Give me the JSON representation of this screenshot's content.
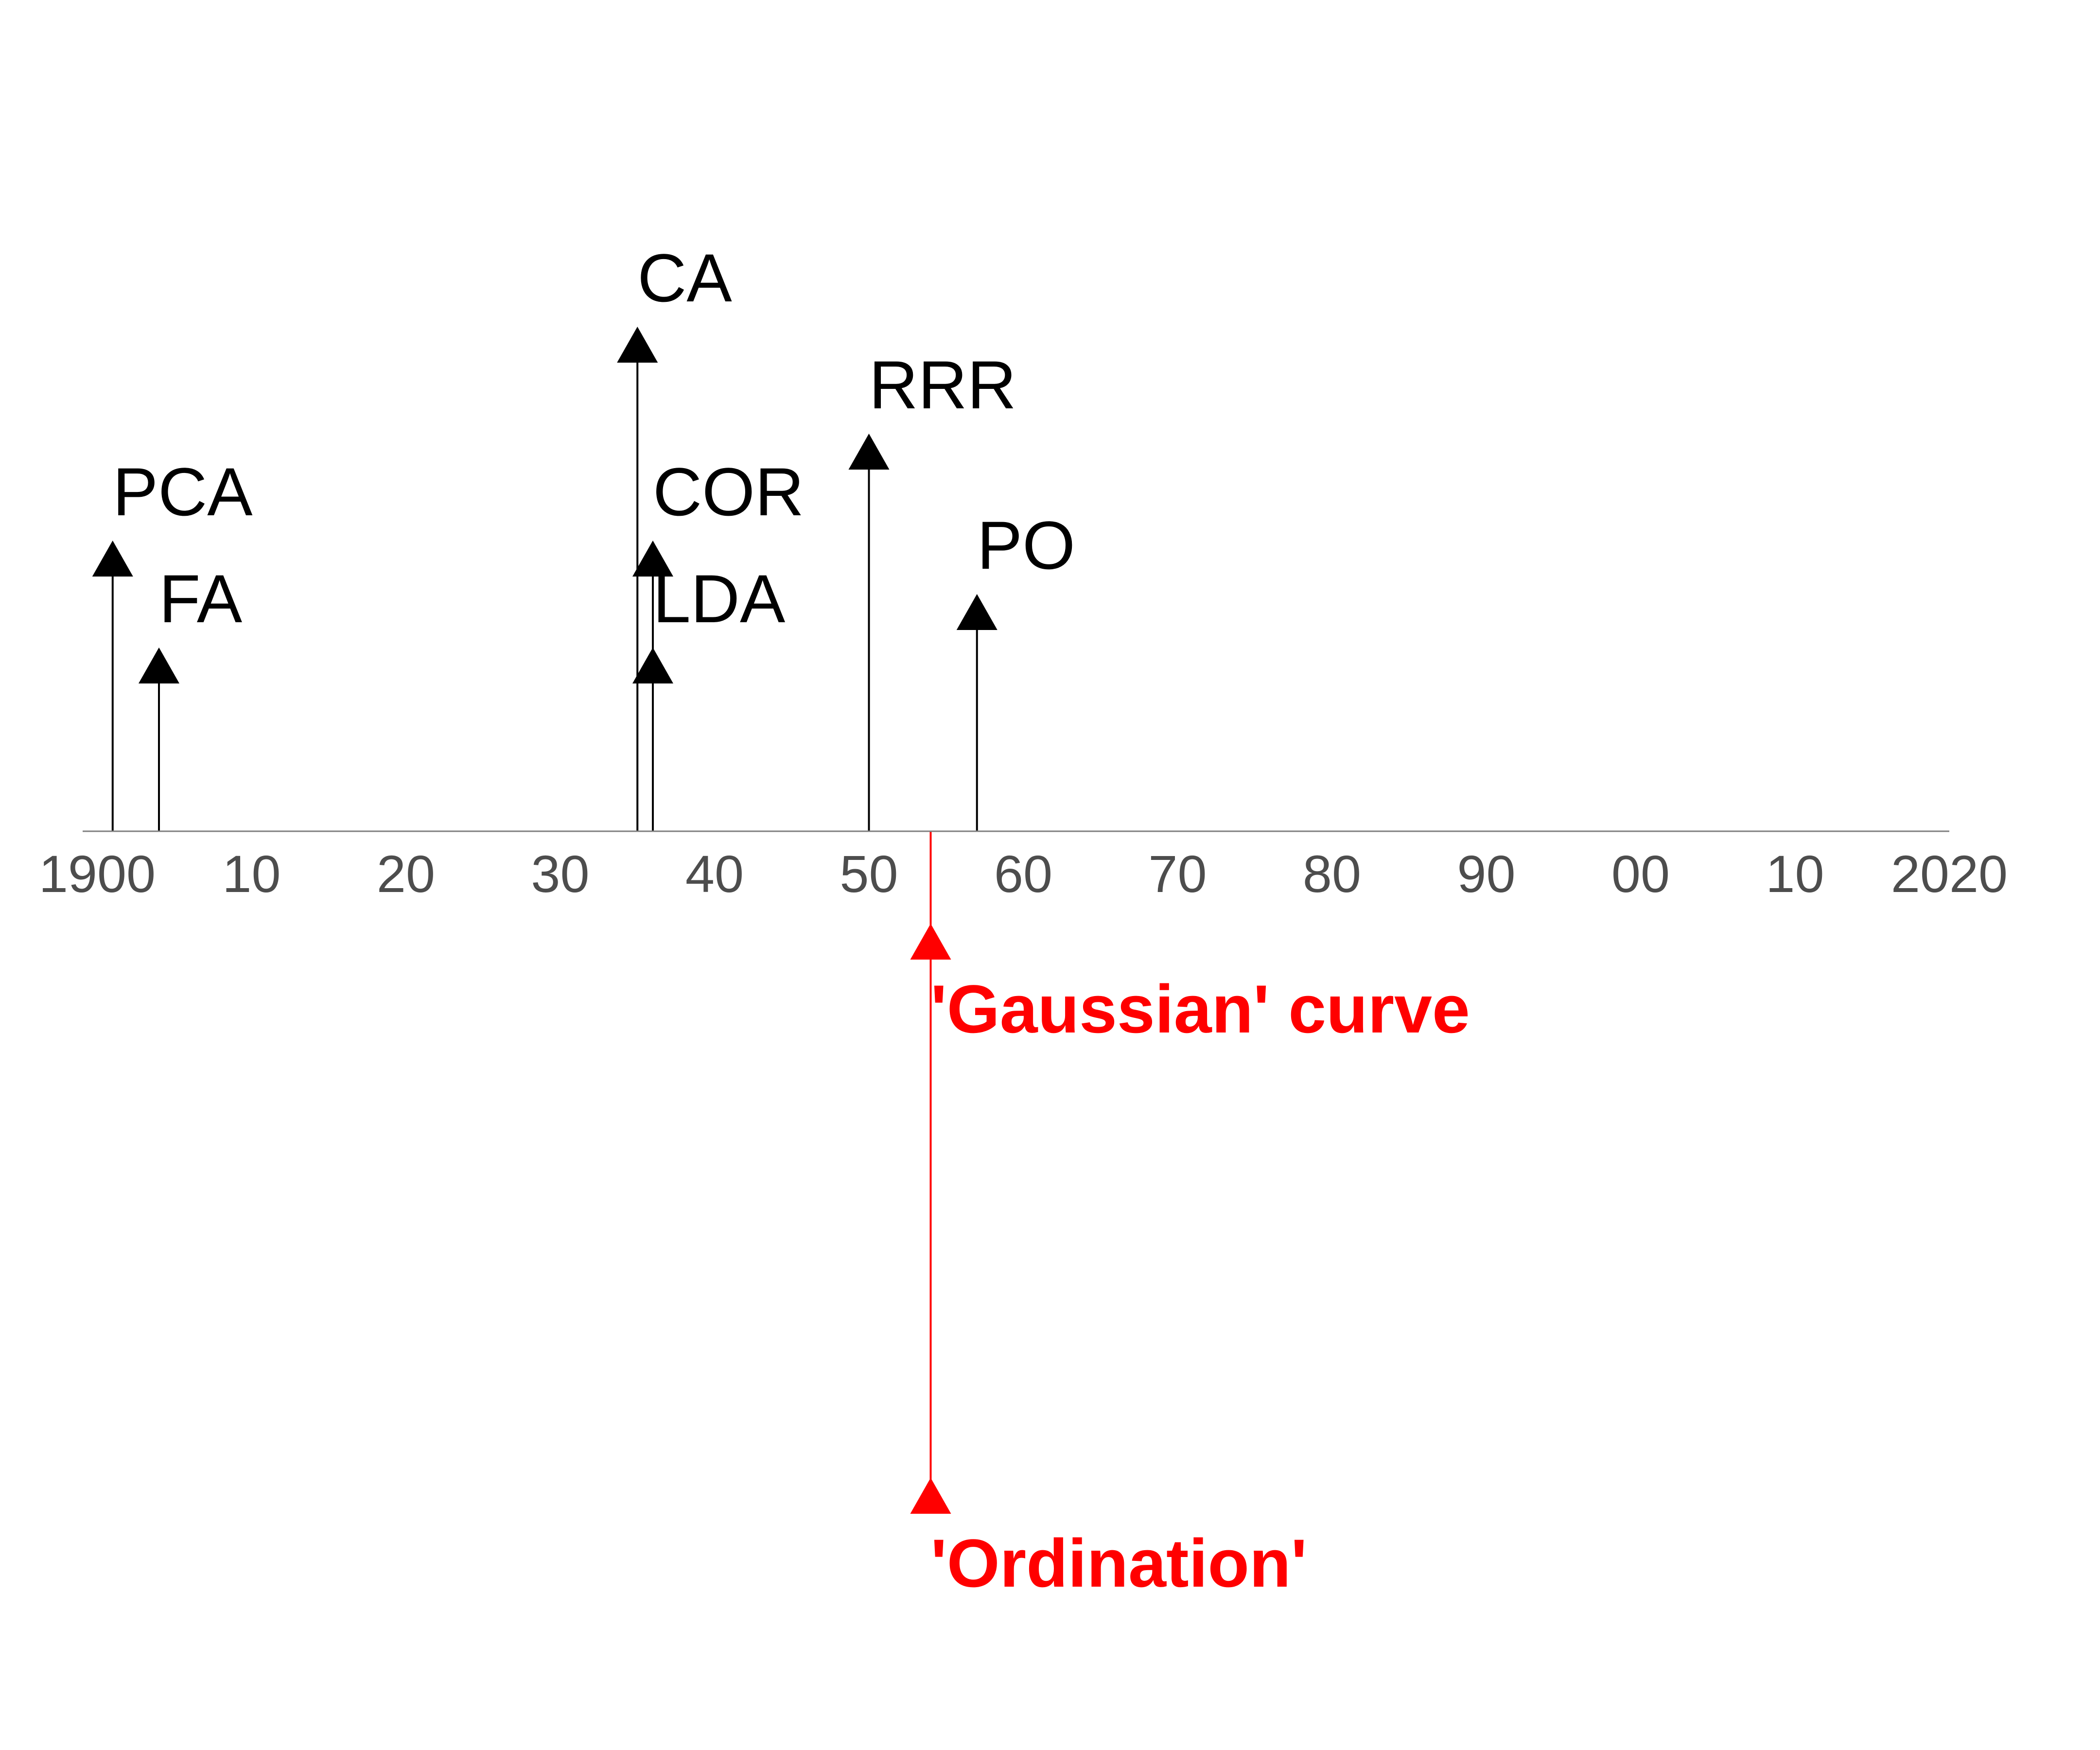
{
  "chart_data": {
    "type": "timeline",
    "x_axis": {
      "range": [
        1900,
        2020
      ],
      "tick_values": [
        1900,
        1910,
        1920,
        1930,
        1940,
        1950,
        1960,
        1970,
        1980,
        1990,
        2000,
        2010,
        2020
      ],
      "tick_labels": [
        "1900",
        "10",
        "20",
        "30",
        "40",
        "50",
        "60",
        "70",
        "80",
        "90",
        "00",
        "10",
        "2020"
      ],
      "line_color": "#808080",
      "tick_label_color": "#4d4d4d"
    },
    "events_above": [
      {
        "label": "PCA",
        "year": 1901,
        "level": 2
      },
      {
        "label": "FA",
        "year": 1904,
        "level": 1
      },
      {
        "label": "CA",
        "year": 1935,
        "level": 4
      },
      {
        "label": "COR",
        "year": 1936,
        "level": 2
      },
      {
        "label": "LDA",
        "year": 1936,
        "level": 1
      },
      {
        "label": "RRR",
        "year": 1950,
        "level": 3
      },
      {
        "label": "PO",
        "year": 1957,
        "level": 1.5
      }
    ],
    "events_below": [
      {
        "label": "'Gaussian' curve",
        "year": 1954,
        "level": 0.5
      },
      {
        "label": "'Ordination'",
        "year": 1954,
        "level": 3.5
      }
    ],
    "colors": {
      "above": "#000000",
      "below": "#ff0000"
    }
  }
}
